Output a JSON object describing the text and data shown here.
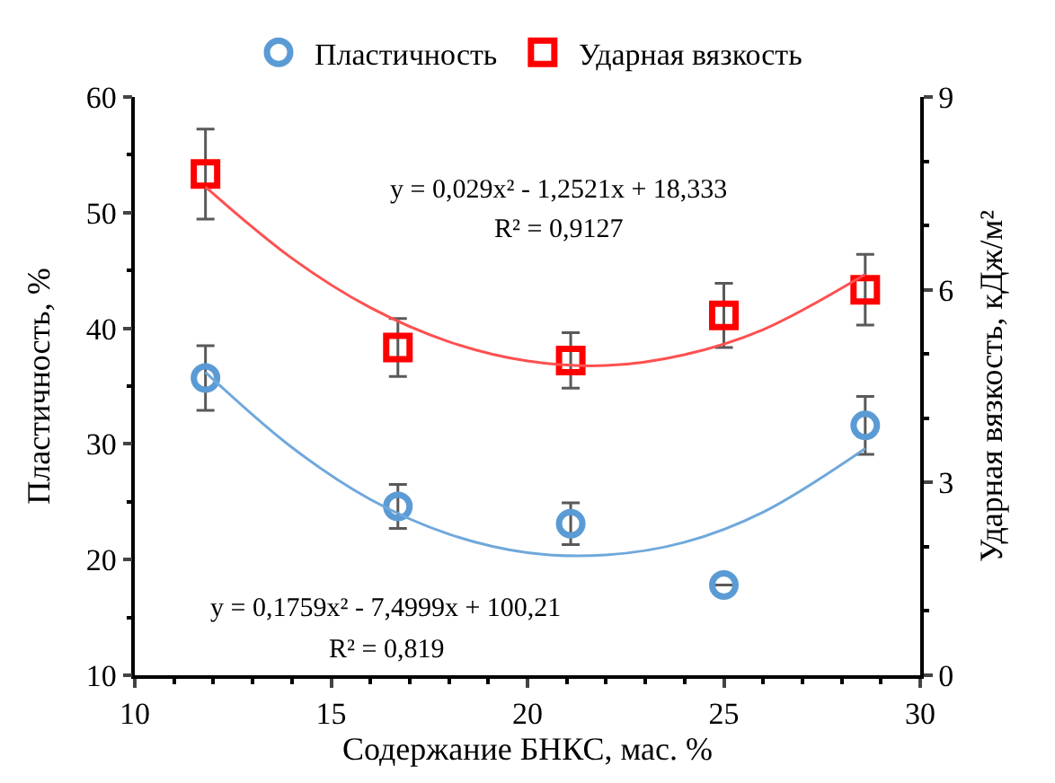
{
  "chart_data": {
    "type": "scatter",
    "xlabel": "Содержание БНКС, мас. %",
    "ylabel": "Пластичность, %",
    "y2label": "Ударная вязкость, кДж/м²",
    "xlim": [
      10,
      30
    ],
    "xticks": [
      10,
      15,
      20,
      25,
      30
    ],
    "ylim": [
      10,
      60
    ],
    "yticks": [
      10,
      20,
      30,
      40,
      50,
      60
    ],
    "y2lim": [
      0,
      9
    ],
    "y2ticks": [
      0,
      3,
      6,
      9
    ],
    "legend": "top",
    "series": [
      {
        "name": "Пластичность",
        "color": "#5b9bd5",
        "marker": "circle",
        "x": [
          11.8,
          16.7,
          21.1,
          25.0,
          28.6
        ],
        "values": [
          35.7,
          24.6,
          23.1,
          17.8,
          31.6
        ],
        "errors": [
          2.8,
          1.9,
          1.8,
          null,
          2.5
        ]
      },
      {
        "name": "Ударная вязкость",
        "color": "#ff0000",
        "marker": "square",
        "axis": "y2",
        "x": [
          11.8,
          16.7,
          21.1,
          25.0,
          28.6
        ],
        "values": [
          7.8,
          5.1,
          4.9,
          5.6,
          6.0
        ],
        "errors": [
          0.7,
          0.45,
          0.43,
          0.5,
          0.55
        ]
      },
      {
        "type": "line",
        "color": "#6fa8dc",
        "marker": "none",
        "x": [
          11.8,
          14,
          16,
          18,
          20,
          22,
          24,
          26,
          28.6
        ],
        "values": [
          36.2,
          29.7,
          25.2,
          22.2,
          20.6,
          20.4,
          21.5,
          24.1,
          29.6
        ]
      },
      {
        "type": "line",
        "color": "#ff5050",
        "marker": "none",
        "axis": "y2",
        "x": [
          11.8,
          14,
          16,
          18,
          20,
          22,
          24,
          26,
          28.6
        ],
        "values": [
          7.6,
          6.49,
          5.72,
          5.19,
          4.89,
          4.82,
          4.99,
          5.38,
          6.24
        ]
      }
    ],
    "annotations": [
      "y = 0,029x² - 1,2521x + 18,333",
      "R² = 0,9127",
      "y = 0,1759x² - 7,4999x + 100,21",
      "R² = 0,819"
    ]
  }
}
